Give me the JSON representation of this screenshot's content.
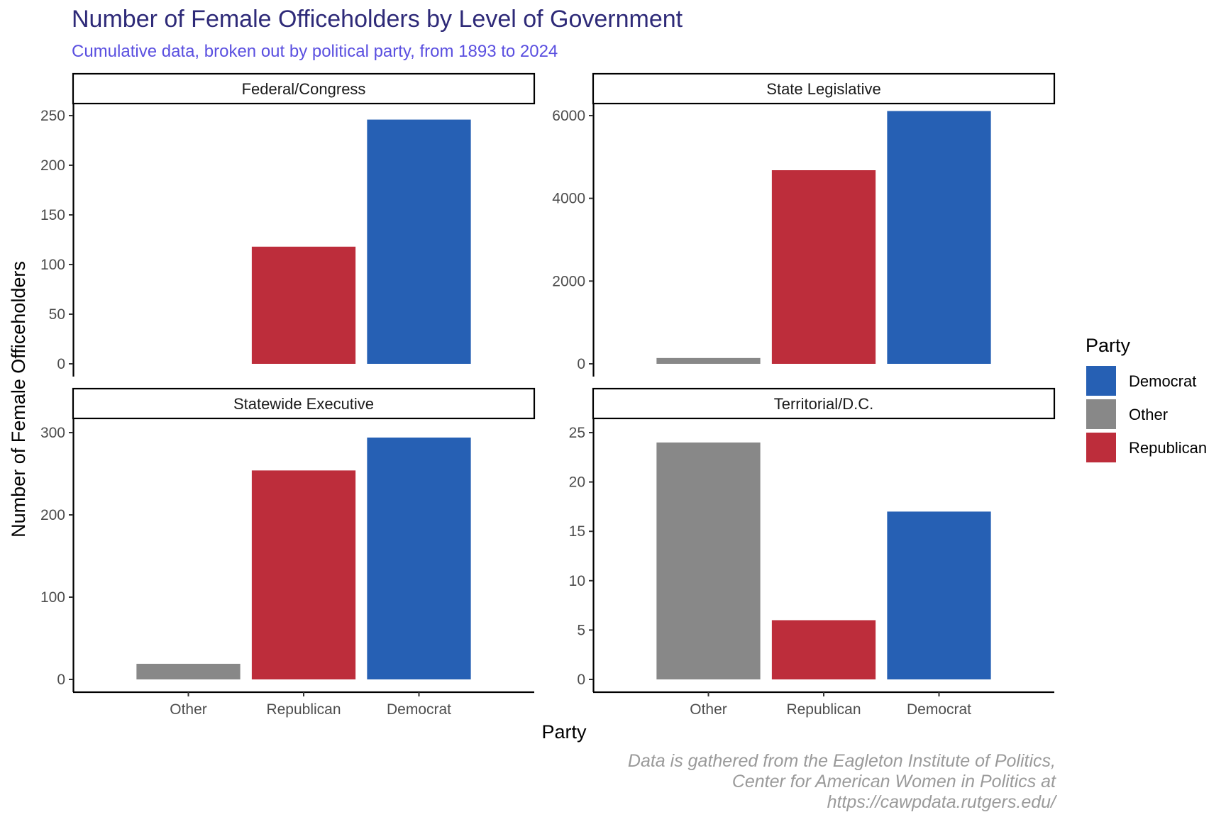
{
  "chart_data": {
    "type": "bar",
    "title": "Number of Female Officeholders by Level of Government",
    "subtitle": "Cumulative data, broken out by political party, from 1893 to 2024",
    "xlabel": "Party",
    "ylabel": "Number of Female Officeholders",
    "categories": [
      "Other",
      "Republican",
      "Democrat"
    ],
    "legend": {
      "title": "Party",
      "position": "right",
      "items": [
        "Democrat",
        "Other",
        "Republican"
      ]
    },
    "colors": {
      "Democrat": "#2660b4",
      "Other": "#888888",
      "Republican": "#bd2d3b"
    },
    "caption": [
      "Data is gathered from the Eagleton Institute of Politics,",
      "Center for American Women in Politics at",
      "https://cawpdata.rutgers.edu/"
    ],
    "grid": false,
    "facets": [
      {
        "label": "Federal/Congress",
        "values": {
          "Other": 0,
          "Republican": 118,
          "Democrat": 246
        },
        "ylim": [
          0,
          250
        ],
        "yticks": [
          0,
          50,
          100,
          150,
          200,
          250
        ]
      },
      {
        "label": "State Legislative",
        "values": {
          "Other": 140,
          "Republican": 4680,
          "Democrat": 6110
        },
        "ylim": [
          0,
          6000
        ],
        "yticks": [
          0,
          2000,
          4000,
          6000
        ]
      },
      {
        "label": "Statewide Executive",
        "values": {
          "Other": 19,
          "Republican": 254,
          "Democrat": 294
        },
        "ylim": [
          0,
          300
        ],
        "yticks": [
          0,
          100,
          200,
          300
        ]
      },
      {
        "label": "Territorial/D.C.",
        "values": {
          "Other": 24,
          "Republican": 6,
          "Democrat": 17
        },
        "ylim": [
          0,
          25
        ],
        "yticks": [
          0,
          5,
          10,
          15,
          20,
          25
        ]
      }
    ]
  }
}
